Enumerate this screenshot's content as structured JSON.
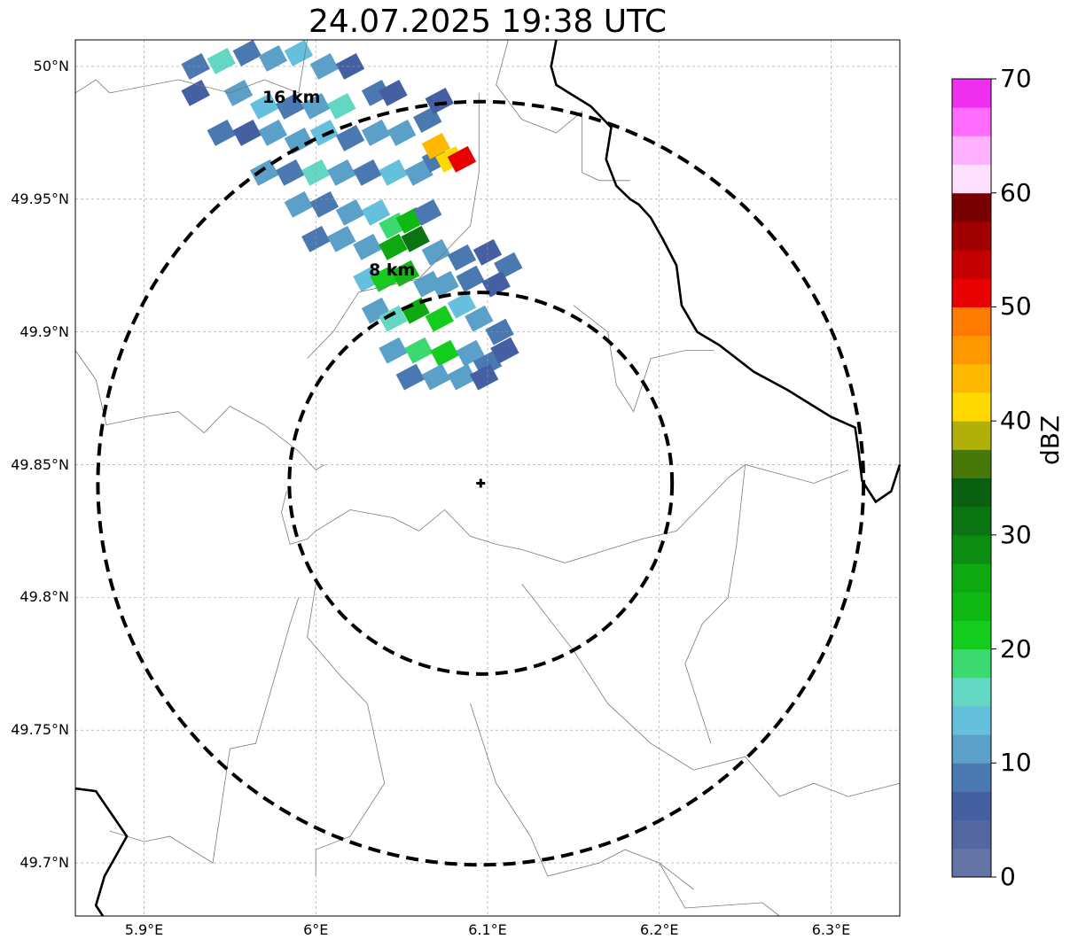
{
  "title": "24.07.2025 19:38 UTC",
  "map": {
    "lon_range": [
      5.86,
      6.34
    ],
    "lat_range": [
      49.68,
      50.01
    ],
    "x_ticks": [
      {
        "value": 5.9,
        "label": "5.9°E"
      },
      {
        "value": 6.0,
        "label": "6°E"
      },
      {
        "value": 6.1,
        "label": "6.1°E"
      },
      {
        "value": 6.2,
        "label": "6.2°E"
      },
      {
        "value": 6.3,
        "label": "6.3°E"
      }
    ],
    "y_ticks": [
      {
        "value": 50.0,
        "label": "50°N"
      },
      {
        "value": 49.95,
        "label": "49.95°N"
      },
      {
        "value": 49.9,
        "label": "49.9°N"
      },
      {
        "value": 49.85,
        "label": "49.85°N"
      },
      {
        "value": 49.8,
        "label": "49.8°N"
      },
      {
        "value": 49.75,
        "label": "49.75°N"
      },
      {
        "value": 49.7,
        "label": "49.7°N"
      }
    ],
    "grid": true,
    "radar_site": {
      "lon": 6.096,
      "lat": 49.843
    },
    "range_rings": [
      {
        "radius_km": 8,
        "label": "8 km",
        "label_lon": 6.035,
        "label_lat": 49.923
      },
      {
        "radius_km": 16,
        "label": "16 km",
        "label_lon": 5.973,
        "label_lat": 49.988
      }
    ],
    "border_lines": [
      [
        [
          6.14,
          50.01
        ],
        [
          6.137,
          50.0
        ],
        [
          6.14,
          49.993
        ],
        [
          6.16,
          49.985
        ],
        [
          6.172,
          49.977
        ],
        [
          6.169,
          49.965
        ],
        [
          6.175,
          49.955
        ],
        [
          6.183,
          49.95
        ],
        [
          6.188,
          49.948
        ],
        [
          6.195,
          49.943
        ],
        [
          6.202,
          49.935
        ],
        [
          6.21,
          49.925
        ],
        [
          6.213,
          49.91
        ],
        [
          6.222,
          49.9
        ],
        [
          6.235,
          49.895
        ],
        [
          6.255,
          49.885
        ],
        [
          6.275,
          49.878
        ],
        [
          6.29,
          49.872
        ],
        [
          6.3,
          49.868
        ],
        [
          6.314,
          49.864
        ],
        [
          6.316,
          49.855
        ],
        [
          6.318,
          49.844
        ],
        [
          6.326,
          49.836
        ],
        [
          6.335,
          49.84
        ],
        [
          6.34,
          49.85
        ]
      ],
      [
        [
          5.86,
          49.728
        ],
        [
          5.872,
          49.727
        ],
        [
          5.89,
          49.71
        ],
        [
          5.877,
          49.695
        ],
        [
          5.872,
          49.684
        ],
        [
          5.876,
          49.68
        ]
      ]
    ],
    "admin_lines": [
      [
        [
          5.86,
          49.99
        ],
        [
          5.872,
          49.995
        ],
        [
          5.88,
          49.99
        ],
        [
          5.92,
          49.995
        ],
        [
          5.95,
          49.99
        ],
        [
          5.97,
          49.995
        ],
        [
          5.99,
          49.99
        ],
        [
          5.995,
          50.01
        ]
      ],
      [
        [
          5.86,
          49.893
        ],
        [
          5.872,
          49.882
        ],
        [
          5.878,
          49.865
        ],
        [
          5.9,
          49.868
        ],
        [
          5.92,
          49.87
        ],
        [
          5.935,
          49.862
        ],
        [
          5.95,
          49.872
        ],
        [
          5.97,
          49.865
        ],
        [
          5.99,
          49.855
        ],
        [
          6.0,
          49.848
        ],
        [
          6.005,
          49.85
        ]
      ],
      [
        [
          5.983,
          49.84
        ],
        [
          5.98,
          49.832
        ],
        [
          5.985,
          49.82
        ],
        [
          5.995,
          49.822
        ],
        [
          6.0,
          49.825
        ],
        [
          6.02,
          49.833
        ],
        [
          6.045,
          49.83
        ],
        [
          6.06,
          49.825
        ],
        [
          6.075,
          49.833
        ],
        [
          6.09,
          49.823
        ],
        [
          6.105,
          49.82
        ],
        [
          6.12,
          49.818
        ],
        [
          6.145,
          49.813
        ],
        [
          6.17,
          49.818
        ],
        [
          6.19,
          49.822
        ],
        [
          6.21,
          49.825
        ],
        [
          6.225,
          49.835
        ],
        [
          6.24,
          49.845
        ],
        [
          6.25,
          49.85
        ],
        [
          6.29,
          49.843
        ],
        [
          6.31,
          49.848
        ]
      ],
      [
        [
          6.112,
          50.01
        ],
        [
          6.105,
          49.993
        ],
        [
          6.12,
          49.98
        ],
        [
          6.14,
          49.975
        ],
        [
          6.155,
          49.983
        ],
        [
          6.155,
          49.96
        ],
        [
          6.165,
          49.957
        ],
        [
          6.183,
          49.957
        ]
      ],
      [
        [
          6.095,
          49.99
        ],
        [
          6.095,
          49.96
        ],
        [
          6.09,
          49.94
        ],
        [
          6.075,
          49.93
        ],
        [
          6.06,
          49.92
        ],
        [
          6.025,
          49.915
        ],
        [
          6.01,
          49.9
        ],
        [
          5.995,
          49.89
        ]
      ],
      [
        [
          6.15,
          49.91
        ],
        [
          6.17,
          49.9
        ],
        [
          6.175,
          49.88
        ],
        [
          6.185,
          49.87
        ],
        [
          6.195,
          49.89
        ],
        [
          6.215,
          49.893
        ],
        [
          6.232,
          49.893
        ]
      ],
      [
        [
          5.99,
          49.8
        ],
        [
          5.985,
          49.79
        ],
        [
          5.965,
          49.745
        ],
        [
          5.95,
          49.743
        ],
        [
          5.94,
          49.7
        ],
        [
          5.915,
          49.71
        ],
        [
          5.9,
          49.708
        ],
        [
          5.88,
          49.712
        ]
      ],
      [
        [
          6.0,
          49.805
        ],
        [
          5.995,
          49.785
        ],
        [
          6.015,
          49.77
        ],
        [
          6.03,
          49.76
        ],
        [
          6.04,
          49.73
        ],
        [
          6.02,
          49.71
        ],
        [
          6.0,
          49.705
        ],
        [
          6.0,
          49.695
        ]
      ],
      [
        [
          6.09,
          49.76
        ],
        [
          6.105,
          49.73
        ],
        [
          6.125,
          49.71
        ],
        [
          6.135,
          49.695
        ],
        [
          6.165,
          49.7
        ],
        [
          6.18,
          49.705
        ],
        [
          6.2,
          49.7
        ],
        [
          6.22,
          49.69
        ]
      ],
      [
        [
          6.12,
          49.805
        ],
        [
          6.15,
          49.78
        ],
        [
          6.17,
          49.76
        ],
        [
          6.195,
          49.745
        ],
        [
          6.22,
          49.735
        ],
        [
          6.25,
          49.74
        ],
        [
          6.27,
          49.725
        ],
        [
          6.29,
          49.73
        ],
        [
          6.31,
          49.725
        ],
        [
          6.34,
          49.73
        ]
      ],
      [
        [
          6.25,
          49.85
        ],
        [
          6.245,
          49.82
        ],
        [
          6.24,
          49.8
        ],
        [
          6.225,
          49.79
        ],
        [
          6.215,
          49.775
        ],
        [
          6.225,
          49.755
        ],
        [
          6.23,
          49.745
        ]
      ],
      [
        [
          6.2,
          49.7
        ],
        [
          6.215,
          49.683
        ],
        [
          6.26,
          49.685
        ],
        [
          6.27,
          49.68
        ]
      ]
    ],
    "reflectivity_cells": [
      [
        5.93,
        50.0,
        8
      ],
      [
        5.945,
        50.002,
        16
      ],
      [
        5.96,
        50.005,
        8
      ],
      [
        5.975,
        50.003,
        12
      ],
      [
        5.99,
        50.005,
        14
      ],
      [
        6.005,
        50.0,
        10
      ],
      [
        6.02,
        50.0,
        6
      ],
      [
        5.93,
        49.99,
        6
      ],
      [
        5.955,
        49.99,
        10
      ],
      [
        5.97,
        49.985,
        14
      ],
      [
        5.985,
        49.985,
        8
      ],
      [
        6.0,
        49.985,
        12
      ],
      [
        6.015,
        49.985,
        16
      ],
      [
        6.035,
        49.99,
        8
      ],
      [
        6.045,
        49.99,
        5
      ],
      [
        5.945,
        49.975,
        8
      ],
      [
        5.96,
        49.975,
        6
      ],
      [
        5.975,
        49.975,
        12
      ],
      [
        5.99,
        49.972,
        10
      ],
      [
        6.005,
        49.975,
        14
      ],
      [
        6.02,
        49.973,
        8
      ],
      [
        6.035,
        49.975,
        12
      ],
      [
        6.05,
        49.975,
        10
      ],
      [
        6.065,
        49.98,
        8
      ],
      [
        6.072,
        49.987,
        6
      ],
      [
        5.97,
        49.96,
        10
      ],
      [
        5.985,
        49.96,
        8
      ],
      [
        6.0,
        49.96,
        16
      ],
      [
        6.015,
        49.96,
        12
      ],
      [
        6.03,
        49.96,
        8
      ],
      [
        6.045,
        49.96,
        14
      ],
      [
        6.06,
        49.96,
        12
      ],
      [
        6.07,
        49.965,
        8
      ],
      [
        5.99,
        49.948,
        12
      ],
      [
        6.005,
        49.948,
        8
      ],
      [
        6.02,
        49.945,
        10
      ],
      [
        6.035,
        49.945,
        14
      ],
      [
        6.045,
        49.94,
        18
      ],
      [
        6.055,
        49.942,
        24
      ],
      [
        6.065,
        49.945,
        8
      ],
      [
        6.0,
        49.935,
        8
      ],
      [
        6.015,
        49.935,
        10
      ],
      [
        6.03,
        49.932,
        12
      ],
      [
        6.045,
        49.932,
        26
      ],
      [
        6.058,
        49.935,
        30
      ],
      [
        6.07,
        49.93,
        12
      ],
      [
        6.085,
        49.928,
        8
      ],
      [
        6.1,
        49.93,
        6
      ],
      [
        6.112,
        49.925,
        8
      ],
      [
        6.03,
        49.92,
        14
      ],
      [
        6.04,
        49.92,
        22
      ],
      [
        6.052,
        49.922,
        24
      ],
      [
        6.065,
        49.918,
        10
      ],
      [
        6.075,
        49.918,
        12
      ],
      [
        6.09,
        49.92,
        8
      ],
      [
        6.105,
        49.918,
        6
      ],
      [
        6.035,
        49.908,
        12
      ],
      [
        6.045,
        49.905,
        16
      ],
      [
        6.058,
        49.908,
        26
      ],
      [
        6.072,
        49.905,
        22
      ],
      [
        6.085,
        49.91,
        14
      ],
      [
        6.095,
        49.905,
        10
      ],
      [
        6.107,
        49.9,
        8
      ],
      [
        6.045,
        49.893,
        10
      ],
      [
        6.06,
        49.893,
        18
      ],
      [
        6.075,
        49.892,
        20
      ],
      [
        6.09,
        49.892,
        12
      ],
      [
        6.1,
        49.888,
        8
      ],
      [
        6.11,
        49.893,
        6
      ],
      [
        6.055,
        49.883,
        8
      ],
      [
        6.07,
        49.883,
        10
      ],
      [
        6.085,
        49.883,
        12
      ],
      [
        6.098,
        49.883,
        6
      ],
      [
        6.07,
        49.97,
        44
      ],
      [
        6.078,
        49.965,
        42
      ],
      [
        6.085,
        49.965,
        52
      ]
    ]
  },
  "colorbar": {
    "label": "dBZ",
    "min": 0,
    "max": 70,
    "step": 2.5,
    "ticks": [
      {
        "value": 70,
        "label": "70"
      },
      {
        "value": 60,
        "label": "60"
      },
      {
        "value": 50,
        "label": "50"
      },
      {
        "value": 40,
        "label": "40"
      },
      {
        "value": 30,
        "label": "30"
      },
      {
        "value": 20,
        "label": "20"
      },
      {
        "value": 10,
        "label": "10"
      },
      {
        "value": 0,
        "label": "0"
      }
    ],
    "colors": [
      "#6474a6",
      "#5467a0",
      "#4460a2",
      "#4a78b0",
      "#5aa0c8",
      "#64c0dc",
      "#64d6c4",
      "#3cd870",
      "#14cc1e",
      "#10b814",
      "#0ea811",
      "#0c8c10",
      "#0a7412",
      "#086010",
      "#487808",
      "#b0b008",
      "#ffd800",
      "#ffb800",
      "#ff9800",
      "#ff7a00",
      "#e80000",
      "#c40000",
      "#a00000",
      "#780000",
      "#ffe0ff",
      "#ffb0ff",
      "#ff6cff",
      "#f030f0"
    ]
  }
}
